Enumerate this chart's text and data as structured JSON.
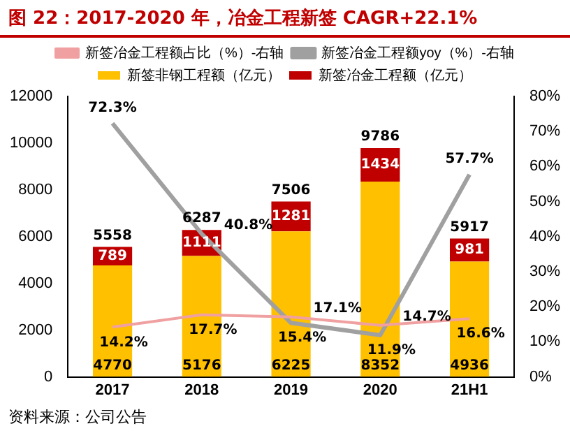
{
  "chart_data": {
    "type": "bar",
    "title": "图 22：2017-2020 年，冶金工程新签 CAGR+22.1%",
    "categories": [
      "2017",
      "2018",
      "2019",
      "2020",
      "21H1"
    ],
    "stacked": true,
    "legend": "top",
    "series": [
      {
        "name": "新签非钢工程额（亿元）",
        "color": "#ffc000",
        "values": [
          4770,
          5176,
          6225,
          8352,
          4936
        ],
        "value_labels": [
          "4770",
          "5176",
          "6225",
          "8352",
          "4936"
        ]
      },
      {
        "name": "新签冶金工程额（亿元）",
        "color": "#c00000",
        "values": [
          789,
          1111,
          1281,
          1434,
          981
        ],
        "value_labels": [
          "789",
          "1111",
          "1281",
          "1434",
          "981"
        ]
      },
      {
        "name": "新签冶金工程额占比（%）-右轴",
        "type": "line",
        "axis": "y2",
        "color": "#f0a0a0",
        "values": [
          14.2,
          17.7,
          17.1,
          14.7,
          16.6
        ],
        "value_labels": [
          "14.2%",
          "17.7%",
          "17.1%",
          "14.7%",
          "16.6%"
        ]
      },
      {
        "name": "新签冶金工程额yoy（%）-右轴",
        "type": "line",
        "axis": "y2",
        "color": "#a0a0a0",
        "values": [
          72.3,
          40.8,
          15.4,
          11.9,
          57.7
        ],
        "value_labels": [
          "72.3%",
          "40.8%",
          "15.4%",
          "11.9%",
          "57.7%"
        ]
      }
    ],
    "totals": [
      "5558",
      "6287",
      "7506",
      "9786",
      "5917"
    ],
    "ylim": [
      0,
      12000
    ],
    "yticks": [
      0,
      2000,
      4000,
      6000,
      8000,
      10000,
      12000
    ],
    "y2lim": [
      0,
      80
    ],
    "y2ticks": [
      {
        "value": 0,
        "label": "0%"
      },
      {
        "value": 10,
        "label": "10%"
      },
      {
        "value": 20,
        "label": "20%"
      },
      {
        "value": 30,
        "label": "30%"
      },
      {
        "value": 40,
        "label": "40%"
      },
      {
        "value": 50,
        "label": "50%"
      },
      {
        "value": 60,
        "label": "60%"
      },
      {
        "value": 70,
        "label": "70%"
      },
      {
        "value": 80,
        "label": "80%"
      }
    ],
    "marker": "none",
    "annotations": [
      "资料来源：公司公告"
    ]
  }
}
